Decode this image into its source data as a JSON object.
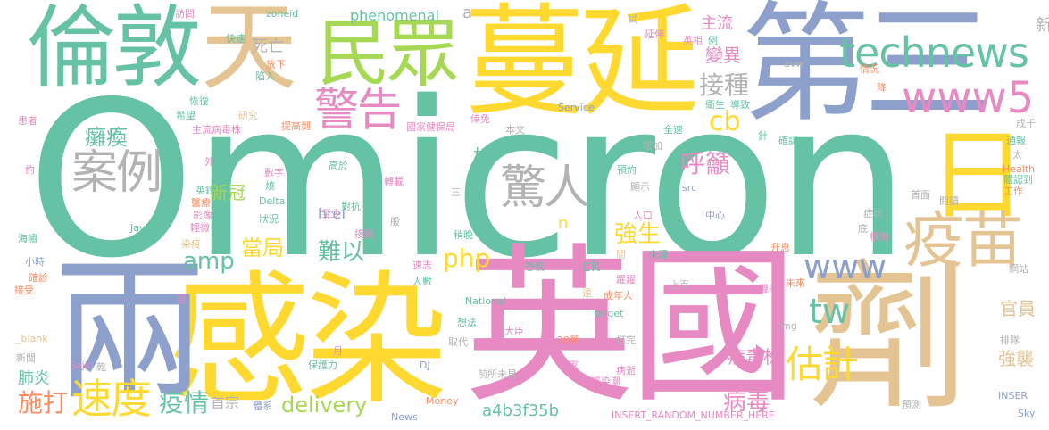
{
  "palette": {
    "green": "#66c2a5",
    "yellow": "#ffd92f",
    "blue": "#8da0cb",
    "pink": "#e78ac3",
    "tan": "#e5c494",
    "lime": "#a6d854",
    "orange": "#fc8d62",
    "gray": "#b3b3b3"
  },
  "words": [
    {
      "text": "Omicron",
      "c": "green"
    },
    {
      "text": "英國",
      "c": "pink"
    },
    {
      "text": "感染",
      "c": "yellow"
    },
    {
      "text": "兩",
      "c": "blue"
    },
    {
      "text": "劑",
      "c": "tan"
    },
    {
      "text": "蔓延",
      "c": "yellow"
    },
    {
      "text": "第三",
      "c": "blue"
    },
    {
      "text": "倫敦",
      "c": "green"
    },
    {
      "text": "天",
      "c": "tan"
    },
    {
      "text": "民眾",
      "c": "lime"
    },
    {
      "text": "日",
      "c": "yellow"
    },
    {
      "text": "technews",
      "c": "green"
    },
    {
      "text": "www5",
      "c": "pink"
    },
    {
      "text": "疫苗",
      "c": "tan"
    },
    {
      "text": "警告",
      "c": "pink"
    },
    {
      "text": "案例",
      "c": "gray"
    },
    {
      "text": "驚人",
      "c": "gray"
    },
    {
      "text": "速度",
      "c": "yellow"
    },
    {
      "text": "www",
      "c": "blue"
    },
    {
      "text": "tw",
      "c": "green"
    },
    {
      "text": "估計",
      "c": "yellow"
    },
    {
      "text": "癱瘓",
      "c": "green"
    },
    {
      "text": "呼籲",
      "c": "pink"
    },
    {
      "text": "接種",
      "c": "gray"
    },
    {
      "text": "cb",
      "c": "yellow"
    },
    {
      "text": "amp",
      "c": "green"
    },
    {
      "text": "php",
      "c": "yellow"
    },
    {
      "text": "當局",
      "c": "yellow"
    },
    {
      "text": "難以",
      "c": "green"
    },
    {
      "text": "強生",
      "c": "yellow"
    },
    {
      "text": "疫情",
      "c": "green"
    },
    {
      "text": "施打",
      "c": "orange"
    },
    {
      "text": "delivery",
      "c": "lime"
    },
    {
      "text": "病毒",
      "c": "pink"
    },
    {
      "text": "強襲",
      "c": "tan"
    },
    {
      "text": "官員",
      "c": "tan"
    },
    {
      "text": "病毒株",
      "c": "pink"
    },
    {
      "text": "肺炎",
      "c": "green"
    },
    {
      "text": "新冠",
      "c": "lime"
    },
    {
      "text": "株",
      "c": "green"
    },
    {
      "text": "變異",
      "c": "pink"
    },
    {
      "text": "主流",
      "c": "pink"
    },
    {
      "text": "死亡",
      "c": "gray"
    },
    {
      "text": "phenomenal",
      "c": "green"
    },
    {
      "text": "a4b3f35b",
      "c": "green"
    },
    {
      "text": "href",
      "c": "blue"
    },
    {
      "text": "ck",
      "c": "green"
    },
    {
      "text": "新",
      "c": "gray"
    },
    {
      "text": "首宗",
      "c": "gray"
    },
    {
      "text": "a",
      "c": "gray"
    },
    {
      "text": "zoneid",
      "c": "green"
    },
    {
      "text": "訪問",
      "c": "pink"
    },
    {
      "text": "快速",
      "c": "green"
    },
    {
      "text": "放下",
      "c": "orange"
    },
    {
      "text": "陷入",
      "c": "green"
    },
    {
      "text": "試",
      "c": "gray"
    },
    {
      "text": "延伸",
      "c": "pink"
    },
    {
      "text": "例",
      "c": "green"
    },
    {
      "text": "英相",
      "c": "pink"
    },
    {
      "text": "avw",
      "c": "gray"
    },
    {
      "text": "情況",
      "c": "orange"
    },
    {
      "text": "降",
      "c": "orange"
    },
    {
      "text": "衛生",
      "c": "green"
    },
    {
      "text": "導致",
      "c": "green"
    },
    {
      "text": "患者",
      "c": "pink"
    },
    {
      "text": "恢復",
      "c": "green"
    },
    {
      "text": "希望",
      "c": "green"
    },
    {
      "text": "研究",
      "c": "tan"
    },
    {
      "text": "提高到",
      "c": "orange"
    },
    {
      "text": "國家健保局",
      "c": "pink"
    },
    {
      "text": "倖免",
      "c": "pink"
    },
    {
      "text": "本文",
      "c": "gray"
    },
    {
      "text": "Service",
      "c": "blue"
    },
    {
      "text": "全速",
      "c": "green"
    },
    {
      "text": "增加",
      "c": "gray"
    },
    {
      "text": "成千",
      "c": "gray"
    },
    {
      "text": "針",
      "c": "green"
    },
    {
      "text": "確認",
      "c": "green"
    },
    {
      "text": "通報",
      "c": "green"
    },
    {
      "text": "太",
      "c": "gray"
    },
    {
      "text": "Health",
      "c": "orange"
    },
    {
      "text": "體認到",
      "c": "green"
    },
    {
      "text": "工作",
      "c": "orange"
    },
    {
      "text": "約",
      "c": "pink"
    },
    {
      "text": "外",
      "c": "pink"
    },
    {
      "text": "主流病毒株",
      "c": "pink"
    },
    {
      "text": "數字",
      "c": "pink"
    },
    {
      "text": "高於",
      "c": "green"
    },
    {
      "text": "轉載",
      "c": "pink"
    },
    {
      "text": "預約",
      "c": "green"
    },
    {
      "text": "顯示",
      "c": "gray"
    },
    {
      "text": "src",
      "c": "blue"
    },
    {
      "text": "首面",
      "c": "gray"
    },
    {
      "text": "閱讀",
      "c": "gray"
    },
    {
      "text": "英鎊",
      "c": "green"
    },
    {
      "text": "燒",
      "c": "green"
    },
    {
      "text": "Delta",
      "c": "green"
    },
    {
      "text": "對抗",
      "c": "green"
    },
    {
      "text": "三",
      "c": "gray"
    },
    {
      "text": "醫療",
      "c": "orange"
    },
    {
      "text": "影像",
      "c": "pink"
    },
    {
      "text": "狀況",
      "c": "green"
    },
    {
      "text": "至少",
      "c": "pink"
    },
    {
      "text": "人口",
      "c": "pink"
    },
    {
      "text": "中心",
      "c": "blue"
    },
    {
      "text": "症狀",
      "c": "gray"
    },
    {
      "text": "海嘯",
      "c": "green"
    },
    {
      "text": "Javid",
      "c": "green"
    },
    {
      "text": "輕微",
      "c": "pink"
    },
    {
      "text": "染疫",
      "c": "tan"
    },
    {
      "text": "接種",
      "c": "pink"
    },
    {
      "text": "般",
      "c": "gray"
    },
    {
      "text": "稍晚",
      "c": "green"
    },
    {
      "text": "n",
      "c": "yellow"
    },
    {
      "text": "間",
      "c": "tan"
    },
    {
      "text": "升息",
      "c": "orange"
    },
    {
      "text": "底",
      "c": "gray"
    },
    {
      "text": "權衡",
      "c": "pink"
    },
    {
      "text": "小時",
      "c": "blue"
    },
    {
      "text": "速志",
      "c": "pink"
    },
    {
      "text": "恐慌",
      "c": "green"
    },
    {
      "text": "來源",
      "c": "green"
    },
    {
      "text": "網站",
      "c": "gray"
    },
    {
      "text": "確診",
      "c": "orange"
    },
    {
      "text": "接受",
      "c": "orange"
    },
    {
      "text": "人數",
      "c": "green"
    },
    {
      "text": "National",
      "c": "green"
    },
    {
      "text": "遠",
      "c": "tan"
    },
    {
      "text": "躍躍",
      "c": "pink"
    },
    {
      "text": "上百",
      "c": "gray"
    },
    {
      "text": "機率",
      "c": "pink"
    },
    {
      "text": "未來",
      "c": "orange"
    },
    {
      "text": "倍",
      "c": "pink"
    },
    {
      "text": "target",
      "c": "green"
    },
    {
      "text": "成年人",
      "c": "orange"
    },
    {
      "text": "img",
      "c": "gray"
    },
    {
      "text": "想法",
      "c": "green"
    },
    {
      "text": "大臣",
      "c": "pink"
    },
    {
      "text": "_blank",
      "c": "tan"
    },
    {
      "text": "月",
      "c": "pink"
    },
    {
      "text": "取代",
      "c": "gray"
    },
    {
      "text": "20萬",
      "c": "orange"
    },
    {
      "text": "打完",
      "c": "gray"
    },
    {
      "text": "排隊",
      "c": "gray"
    },
    {
      "text": "新聞",
      "c": "gray"
    },
    {
      "text": "Sajid",
      "c": "pink"
    },
    {
      "text": "保護力",
      "c": "green"
    },
    {
      "text": "居家",
      "c": "pink"
    },
    {
      "text": "病逝",
      "c": "pink"
    },
    {
      "text": "DJ",
      "c": "blue"
    },
    {
      "text": "前所未見",
      "c": "gray"
    },
    {
      "text": "感染潮",
      "c": "pink"
    },
    {
      "text": "INSER",
      "c": "blue"
    },
    {
      "text": "預測",
      "c": "gray"
    },
    {
      "text": "乾",
      "c": "gray"
    },
    {
      "text": "體系",
      "c": "blue"
    },
    {
      "text": "News",
      "c": "blue"
    },
    {
      "text": "Money",
      "c": "orange"
    },
    {
      "text": "INSERT_RANDOM_NUMBER_HERE",
      "c": "pink"
    },
    {
      "text": "Sky",
      "c": "blue"
    }
  ]
}
